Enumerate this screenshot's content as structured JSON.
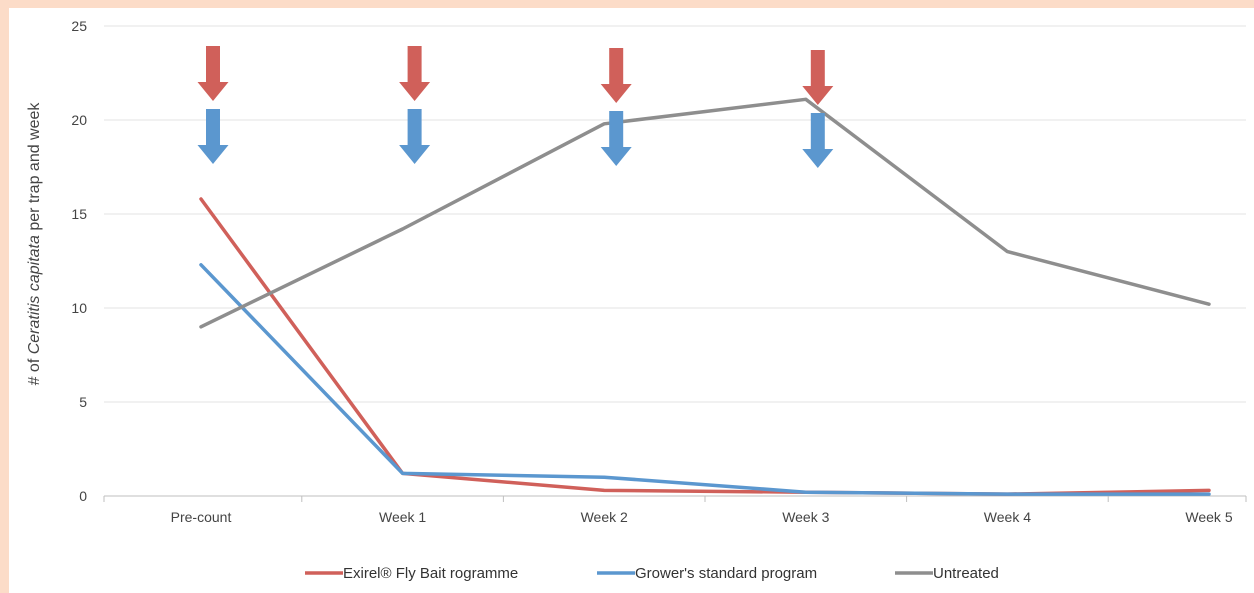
{
  "chart_data": {
    "type": "line",
    "categories": [
      "Pre-count",
      "Week 1",
      "Week 2",
      "Week 3",
      "Week 4",
      "Week 5"
    ],
    "series": [
      {
        "name": "Exirel® Fly Bait rogramme",
        "color": "#d0605a",
        "values": [
          15.8,
          1.2,
          0.3,
          0.2,
          0.1,
          0.3
        ]
      },
      {
        "name": "Grower's standard program",
        "color": "#5b97cf",
        "values": [
          12.3,
          1.2,
          1.0,
          0.2,
          0.1,
          0.1
        ]
      },
      {
        "name": "Untreated",
        "color": "#8e8e8e",
        "values": [
          9.0,
          14.2,
          19.8,
          21.1,
          13.0,
          10.2
        ]
      }
    ],
    "ylabel": {
      "prefix": "# of ",
      "italic": "Ceratitis capitata",
      "suffix": " per trap and week"
    },
    "ylim": [
      0,
      25
    ],
    "yticks": [
      0,
      5,
      10,
      15,
      20,
      25
    ],
    "grid": true,
    "legend_position": "bottom",
    "annotations": {
      "red_arrows_at": [
        "Pre-count",
        "Week 1",
        "Week 2",
        "Week 3"
      ],
      "blue_arrows_at": [
        "Pre-count",
        "Week 1",
        "Week 2",
        "Week 3"
      ],
      "red_arrow_color": "#d0605a",
      "blue_arrow_color": "#5b97cf"
    }
  }
}
